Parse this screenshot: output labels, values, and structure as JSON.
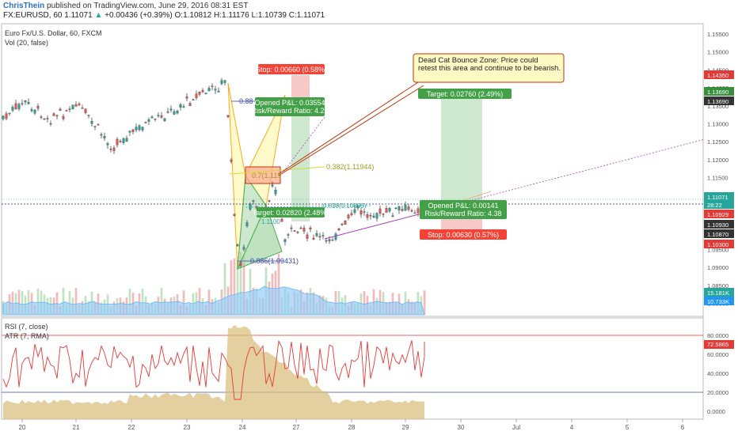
{
  "header": {
    "author": "ChrisThein",
    "published": "published on TradingView.com, June 29, 2016 08:31 EST",
    "symbol": "FX:EURUSD, 60",
    "last": "1.11071",
    "change": "+0.00436 (+0.39%)",
    "ohlc_o": "O:1.10812",
    "ohlc_h": "H:1.11176",
    "ohlc_l": "L:1.10739",
    "ohlc_c": "C:1.11071"
  },
  "main_pane": {
    "title": "Euro Fx/U.S. Dollar, 60, FXCM",
    "vol_label": "Vol (20, false)"
  },
  "rsi_pane": {
    "rsi_label": "RSI (7, close)",
    "atr_label": "ATR (7, RMA)"
  },
  "annotations": {
    "callout": "Dead Cat Bounce Zone: Price could retest this area and continue to be bearish.",
    "short1_stop": "Stop: 0.00660 (0.58%)",
    "short1_pl": "Opened P&L: 0.03554",
    "short1_rr": "Risk/Reward Ratio: 4.27",
    "short1_target": "Target: 0.02820 (2.48%)",
    "long_target": "Target: 0.02760 (2.49%)",
    "long_pl": "Opened P&L: 0.00141",
    "long_rr": "Risk/Reward Ratio: 4.38",
    "long_stop": "Stop: 0.00630 (0.57%)",
    "fib_382": "0.382(1.11944)",
    "fib_886": "0.886(1.09431)",
    "fib_618": "0.618(1.10806)",
    "fib_886_top": "0.88",
    "fib_small": "0.7(1.119",
    "fib_1100": "1.1100"
  },
  "price_axis": {
    "ticks": [
      "1.15500",
      "1.15000",
      "1.14500",
      "1.14000",
      "1.13500",
      "1.13000",
      "1.12500",
      "1.12000",
      "1.11500",
      "1.11000",
      "1.10500",
      "1.10000",
      "1.09500",
      "1.09000",
      "1.08500",
      "1.08000"
    ],
    "labels": [
      {
        "text": "1.14350",
        "color": "#e53935"
      },
      {
        "text": "1.13690",
        "color": "#388e3c"
      },
      {
        "text": "1.13690",
        "color": "#333333"
      },
      {
        "text": "1.11071",
        "color": "#26a69a"
      },
      {
        "text": "28:22",
        "color": "#26a69a"
      },
      {
        "text": "1.10929",
        "color": "#e53935"
      },
      {
        "text": "1.10930",
        "color": "#333333"
      },
      {
        "text": "1.10870",
        "color": "#333333"
      },
      {
        "text": "1.10300",
        "color": "#e53935"
      },
      {
        "text": "15.181K",
        "color": "#26a69a"
      },
      {
        "text": "10.733K",
        "color": "#2196f3"
      }
    ]
  },
  "rsi_axis": {
    "ticks": [
      "80.0000",
      "60.0000",
      "40.0000",
      "20.0000",
      "0.0000"
    ],
    "value_label": "72.5865"
  },
  "time_axis": [
    "20",
    "21",
    "22",
    "23",
    "24",
    "27",
    "28",
    "29",
    "30",
    "Jul",
    "4",
    "5",
    "6"
  ],
  "colors": {
    "bull": "#26a69a",
    "bear": "#ef5350",
    "candle": "#333333",
    "target_zone": "#a5d6a7",
    "stop_zone": "#ef9a9a",
    "vol_area": "#90caf9",
    "rsi_line": "#e53935",
    "atr_area": "#d9bf80"
  }
}
